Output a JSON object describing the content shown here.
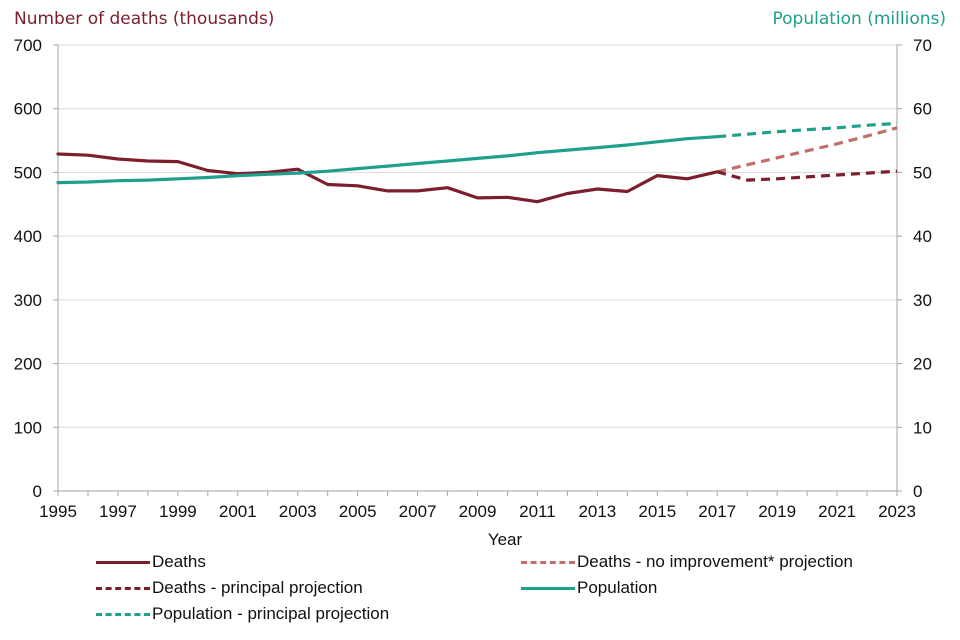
{
  "chart_data": {
    "type": "line",
    "title": "",
    "xlabel": "Year",
    "ylabel_left": "Number of deaths (thousands)",
    "ylabel_right": "Population (millions)",
    "xlim": [
      1995,
      2023
    ],
    "ylim_left": [
      0,
      700
    ],
    "ylim_right": [
      0,
      70
    ],
    "grid": true,
    "legend_position": "bottom",
    "x_ticks": [
      1995,
      1997,
      1999,
      2001,
      2003,
      2005,
      2007,
      2009,
      2011,
      2013,
      2015,
      2017,
      2019,
      2021,
      2023
    ],
    "y_ticks_left": [
      0,
      100,
      200,
      300,
      400,
      500,
      600,
      700
    ],
    "y_ticks_right": [
      0,
      10,
      20,
      30,
      40,
      50,
      60,
      70
    ],
    "colors": {
      "deaths": "#7b1f2d",
      "deaths_no_improvement": "#c0706c",
      "population": "#1fa08a",
      "grid": "#d9d9d9",
      "axis": "#a6a6a6"
    },
    "series": [
      {
        "name": "Deaths",
        "axis": "left",
        "style": "solid",
        "color_key": "deaths",
        "x": [
          1995,
          1996,
          1997,
          1998,
          1999,
          2000,
          2001,
          2002,
          2003,
          2004,
          2005,
          2006,
          2007,
          2008,
          2009,
          2010,
          2011,
          2012,
          2013,
          2014,
          2015,
          2016,
          2017
        ],
        "values": [
          529,
          527,
          521,
          518,
          517,
          503,
          498,
          500,
          505,
          481,
          479,
          471,
          471,
          476,
          460,
          461,
          454,
          467,
          474,
          470,
          495,
          490,
          501
        ]
      },
      {
        "name": "Deaths - no improvement* projection",
        "axis": "left",
        "style": "dashed",
        "color_key": "deaths_no_improvement",
        "x": [
          2017,
          2018,
          2019,
          2020,
          2021,
          2022,
          2023
        ],
        "values": [
          501,
          512,
          523,
          534,
          545,
          557,
          570
        ]
      },
      {
        "name": "Deaths - principal projection",
        "axis": "left",
        "style": "dashed",
        "color_key": "deaths",
        "x": [
          2017,
          2018,
          2019,
          2020,
          2021,
          2022,
          2023
        ],
        "values": [
          501,
          488,
          490,
          493,
          496,
          499,
          502
        ]
      },
      {
        "name": "Population",
        "axis": "right",
        "style": "solid",
        "color_key": "population",
        "x": [
          1995,
          1996,
          1997,
          1998,
          1999,
          2000,
          2001,
          2002,
          2003,
          2004,
          2005,
          2006,
          2007,
          2008,
          2009,
          2010,
          2011,
          2012,
          2013,
          2014,
          2015,
          2016,
          2017
        ],
        "values": [
          48.4,
          48.5,
          48.7,
          48.8,
          49.0,
          49.2,
          49.5,
          49.7,
          49.9,
          50.2,
          50.6,
          51.0,
          51.4,
          51.8,
          52.2,
          52.6,
          53.1,
          53.5,
          53.9,
          54.3,
          54.8,
          55.3,
          55.6
        ]
      },
      {
        "name": "Population - principal projection",
        "axis": "right",
        "style": "dashed",
        "color_key": "population",
        "x": [
          2017,
          2018,
          2019,
          2020,
          2021,
          2022,
          2023
        ],
        "values": [
          55.6,
          56.0,
          56.4,
          56.7,
          57.0,
          57.4,
          57.7
        ]
      }
    ],
    "legend": [
      {
        "label": "Deaths",
        "series_index": 0
      },
      {
        "label": "Deaths - no improvement* projection",
        "series_index": 1
      },
      {
        "label": "Deaths - principal projection",
        "series_index": 2
      },
      {
        "label": "Population",
        "series_index": 3
      },
      {
        "label": "Population - principal projection",
        "series_index": 4
      }
    ]
  }
}
